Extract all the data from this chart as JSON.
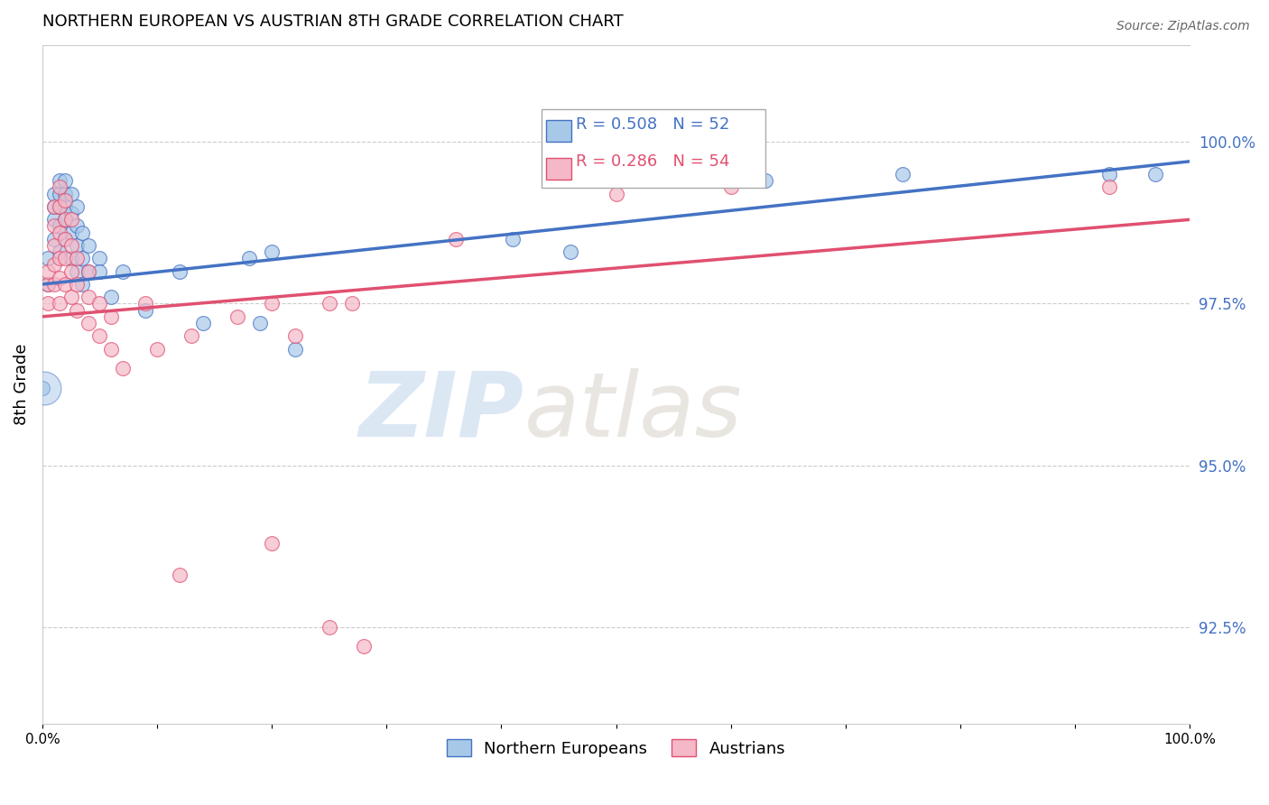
{
  "title": "NORTHERN EUROPEAN VS AUSTRIAN 8TH GRADE CORRELATION CHART",
  "source": "Source: ZipAtlas.com",
  "ylabel": "8th Grade",
  "right_yticks": [
    92.5,
    95.0,
    97.5,
    100.0
  ],
  "right_ytick_labels": [
    "92.5%",
    "95.0%",
    "97.5%",
    "100.0%"
  ],
  "xlim": [
    0.0,
    1.0
  ],
  "ylim": [
    91.0,
    101.5
  ],
  "legend_blue_label": "Northern Europeans",
  "legend_pink_label": "Austrians",
  "corr_blue_R": "R = 0.508",
  "corr_blue_N": "N = 52",
  "corr_pink_R": "R = 0.286",
  "corr_pink_N": "N = 54",
  "blue_color": "#a8c8e8",
  "pink_color": "#f4b8c8",
  "blue_line_color": "#4472c4",
  "pink_line_color": "#e05070",
  "blue_scatter": [
    [
      0.005,
      97.8
    ],
    [
      0.005,
      98.2
    ],
    [
      0.01,
      98.5
    ],
    [
      0.01,
      98.8
    ],
    [
      0.01,
      99.0
    ],
    [
      0.01,
      99.2
    ],
    [
      0.015,
      98.3
    ],
    [
      0.015,
      98.7
    ],
    [
      0.015,
      99.0
    ],
    [
      0.015,
      99.2
    ],
    [
      0.015,
      99.4
    ],
    [
      0.02,
      98.5
    ],
    [
      0.02,
      98.8
    ],
    [
      0.02,
      99.0
    ],
    [
      0.02,
      99.2
    ],
    [
      0.02,
      99.4
    ],
    [
      0.025,
      98.2
    ],
    [
      0.025,
      98.6
    ],
    [
      0.025,
      98.9
    ],
    [
      0.025,
      99.2
    ],
    [
      0.03,
      98.0
    ],
    [
      0.03,
      98.4
    ],
    [
      0.03,
      98.7
    ],
    [
      0.03,
      99.0
    ],
    [
      0.035,
      97.8
    ],
    [
      0.035,
      98.2
    ],
    [
      0.035,
      98.6
    ],
    [
      0.04,
      98.0
    ],
    [
      0.04,
      98.4
    ],
    [
      0.05,
      98.2
    ],
    [
      0.05,
      98.0
    ],
    [
      0.06,
      97.6
    ],
    [
      0.07,
      98.0
    ],
    [
      0.09,
      97.4
    ],
    [
      0.12,
      98.0
    ],
    [
      0.14,
      97.2
    ],
    [
      0.18,
      98.2
    ],
    [
      0.19,
      97.2
    ],
    [
      0.2,
      98.3
    ],
    [
      0.22,
      96.8
    ],
    [
      0.0,
      96.2
    ],
    [
      0.41,
      98.5
    ],
    [
      0.46,
      98.3
    ],
    [
      0.62,
      99.5
    ],
    [
      0.63,
      99.4
    ],
    [
      0.75,
      99.5
    ],
    [
      0.93,
      99.5
    ],
    [
      0.97,
      99.5
    ]
  ],
  "pink_scatter": [
    [
      0.005,
      97.5
    ],
    [
      0.005,
      97.8
    ],
    [
      0.005,
      98.0
    ],
    [
      0.01,
      97.8
    ],
    [
      0.01,
      98.1
    ],
    [
      0.01,
      98.4
    ],
    [
      0.01,
      98.7
    ],
    [
      0.01,
      99.0
    ],
    [
      0.015,
      97.5
    ],
    [
      0.015,
      97.9
    ],
    [
      0.015,
      98.2
    ],
    [
      0.015,
      98.6
    ],
    [
      0.015,
      99.0
    ],
    [
      0.015,
      99.3
    ],
    [
      0.02,
      97.8
    ],
    [
      0.02,
      98.2
    ],
    [
      0.02,
      98.5
    ],
    [
      0.02,
      98.8
    ],
    [
      0.02,
      99.1
    ],
    [
      0.025,
      97.6
    ],
    [
      0.025,
      98.0
    ],
    [
      0.025,
      98.4
    ],
    [
      0.025,
      98.8
    ],
    [
      0.03,
      97.4
    ],
    [
      0.03,
      97.8
    ],
    [
      0.03,
      98.2
    ],
    [
      0.04,
      97.2
    ],
    [
      0.04,
      97.6
    ],
    [
      0.04,
      98.0
    ],
    [
      0.05,
      97.0
    ],
    [
      0.05,
      97.5
    ],
    [
      0.06,
      96.8
    ],
    [
      0.06,
      97.3
    ],
    [
      0.07,
      96.5
    ],
    [
      0.09,
      97.5
    ],
    [
      0.1,
      96.8
    ],
    [
      0.13,
      97.0
    ],
    [
      0.17,
      97.3
    ],
    [
      0.2,
      97.5
    ],
    [
      0.22,
      97.0
    ],
    [
      0.25,
      97.5
    ],
    [
      0.27,
      97.5
    ],
    [
      0.36,
      98.5
    ],
    [
      0.5,
      99.2
    ],
    [
      0.6,
      99.3
    ],
    [
      0.93,
      99.3
    ],
    [
      0.12,
      93.3
    ],
    [
      0.2,
      93.8
    ],
    [
      0.25,
      92.5
    ],
    [
      0.28,
      92.2
    ]
  ],
  "watermark_zip": "ZIP",
  "watermark_atlas": "atlas",
  "background_color": "#ffffff",
  "grid_color": "#cccccc"
}
